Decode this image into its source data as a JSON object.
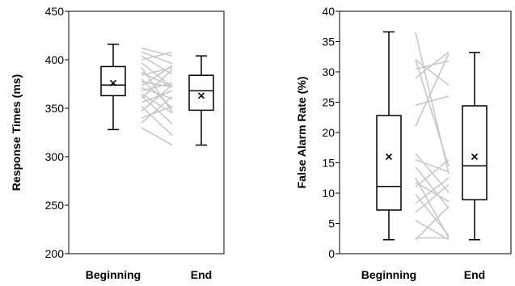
{
  "chart_data": [
    {
      "type": "box",
      "ylabel": "Response Times (ms)",
      "ylim": [
        200,
        450
      ],
      "yticks": [
        "200",
        "250",
        "300",
        "350",
        "400",
        "450"
      ],
      "tick_values": [
        200,
        250,
        300,
        350,
        400,
        450
      ],
      "categories": [
        "Beginning",
        "End"
      ],
      "boxes": [
        {
          "category": "Beginning",
          "min": 328,
          "q1": 363,
          "median": 374,
          "q3": 393,
          "max": 416,
          "mean": 376
        },
        {
          "category": "End",
          "min": 312,
          "q1": 348,
          "median": 368,
          "q3": 384,
          "max": 404,
          "mean": 363
        }
      ],
      "individual_lines": [
        [
          412,
          404
        ],
        [
          408,
          396
        ],
        [
          404,
          385
        ],
        [
          400,
          408
        ],
        [
          397,
          372
        ],
        [
          392,
          346
        ],
        [
          387,
          372
        ],
        [
          384,
          392
        ],
        [
          380,
          350
        ],
        [
          377,
          372
        ],
        [
          373,
          394
        ],
        [
          371,
          360
        ],
        [
          368,
          376
        ],
        [
          365,
          345
        ],
        [
          363,
          334
        ],
        [
          360,
          390
        ],
        [
          356,
          368
        ],
        [
          352,
          322
        ],
        [
          347,
          374
        ],
        [
          340,
          352
        ],
        [
          335,
          362
        ],
        [
          330,
          312
        ]
      ]
    },
    {
      "type": "box",
      "ylabel": "False Alarm Rate (%)",
      "ylim": [
        0,
        40
      ],
      "yticks": [
        "0",
        "5",
        "10",
        "15",
        "20",
        "25",
        "30",
        "35",
        "40"
      ],
      "tick_values": [
        0,
        5,
        10,
        15,
        20,
        25,
        30,
        35,
        40
      ],
      "categories": [
        "Beginning",
        "End"
      ],
      "boxes": [
        {
          "category": "Beginning",
          "min": 2.3,
          "q1": 7.2,
          "median": 11.1,
          "q3": 22.8,
          "max": 36.6,
          "mean": 16.0
        },
        {
          "category": "End",
          "min": 2.3,
          "q1": 8.9,
          "median": 14.5,
          "q3": 24.4,
          "max": 33.2,
          "mean": 16.0
        }
      ],
      "individual_lines": [
        [
          36.5,
          13.2
        ],
        [
          32.0,
          14.4
        ],
        [
          32.0,
          27.8
        ],
        [
          30.5,
          31.8
        ],
        [
          29.0,
          33.3
        ],
        [
          24.5,
          26.0
        ],
        [
          21.0,
          33.0
        ],
        [
          16.5,
          10.1
        ],
        [
          15.5,
          13.5
        ],
        [
          14.3,
          7.5
        ],
        [
          12.5,
          2.6
        ],
        [
          11.8,
          8.6
        ],
        [
          11.0,
          15.5
        ],
        [
          9.8,
          3.0
        ],
        [
          8.3,
          12.5
        ],
        [
          6.8,
          11.4
        ],
        [
          5.5,
          2.3
        ],
        [
          2.6,
          2.6
        ],
        [
          2.3,
          7.8
        ]
      ]
    }
  ]
}
